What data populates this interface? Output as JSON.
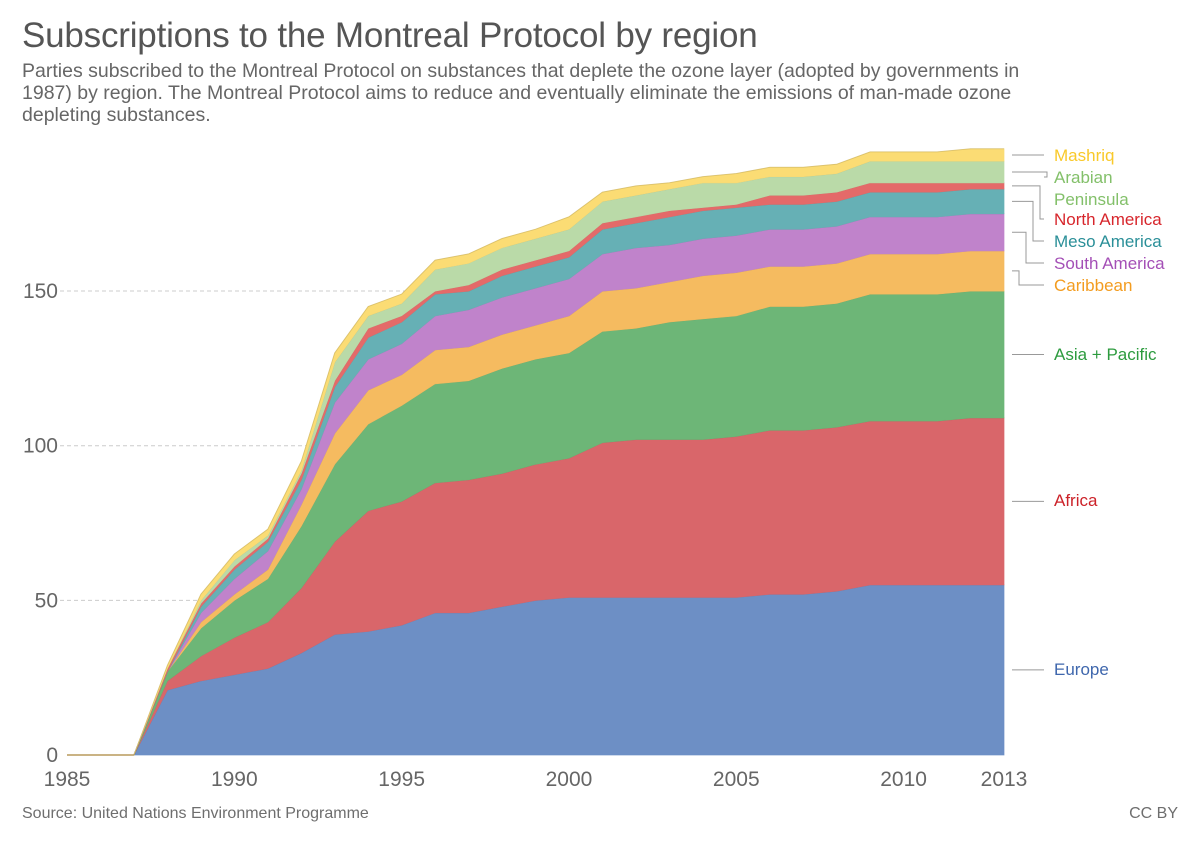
{
  "header": {
    "title": "Subscriptions to the Montreal Protocol by region",
    "subtitle": "Parties subscribed to the Montreal Protocol on substances that deplete the ozone layer (adopted by governments in 1987) by region. The Montreal Protocol aims to reduce and eventually eliminate the emissions of man-made ozone depleting substances."
  },
  "footer": {
    "source": "Source: United Nations Environment Programme",
    "license": "CC BY"
  },
  "chart_data": {
    "type": "area",
    "stacked": true,
    "title": "Subscriptions to the Montreal Protocol by region",
    "xlabel": "",
    "ylabel": "",
    "x": [
      1985,
      1986,
      1987,
      1988,
      1989,
      1990,
      1991,
      1992,
      1993,
      1994,
      1995,
      1996,
      1997,
      1998,
      1999,
      2000,
      2001,
      2002,
      2003,
      2004,
      2005,
      2006,
      2007,
      2008,
      2009,
      2010,
      2011,
      2012,
      2013
    ],
    "xlim": [
      1985,
      2013
    ],
    "ylim": [
      0,
      196
    ],
    "x_ticks": [
      "1985",
      "1990",
      "1995",
      "2000",
      "2005",
      "2010",
      "2013"
    ],
    "x_tick_values": [
      1985,
      1990,
      1995,
      2000,
      2005,
      2010,
      2013
    ],
    "y_ticks": [
      "0",
      "50",
      "100",
      "150"
    ],
    "y_tick_values": [
      0,
      50,
      100,
      150
    ],
    "grid": "horizontal dashed",
    "legend": "right, end-of-series labels",
    "series": [
      {
        "name": "Europe",
        "color": "#6d8fc5",
        "label_color": "#3f67ad",
        "values": [
          0,
          0,
          0,
          21,
          24,
          26,
          28,
          33,
          39,
          40,
          42,
          46,
          46,
          48,
          50,
          51,
          51,
          51,
          51,
          51,
          51,
          52,
          52,
          53,
          55,
          55,
          55,
          55,
          55
        ]
      },
      {
        "name": "Africa",
        "color": "#d9666a",
        "label_color": "#cc2229",
        "values": [
          0,
          0,
          0,
          3,
          8,
          12,
          15,
          21,
          30,
          39,
          40,
          42,
          43,
          43,
          44,
          45,
          50,
          51,
          51,
          51,
          52,
          53,
          53,
          53,
          53,
          53,
          53,
          54,
          54
        ]
      },
      {
        "name": "Asia + Pacific",
        "color": "#6db677",
        "label_color": "#2c9b3e",
        "values": [
          0,
          0,
          0,
          3,
          9,
          12,
          14,
          20,
          25,
          28,
          31,
          32,
          32,
          34,
          34,
          34,
          36,
          36,
          38,
          39,
          39,
          40,
          40,
          40,
          41,
          41,
          41,
          41,
          41
        ]
      },
      {
        "name": "Caribbean",
        "color": "#f5bb60",
        "label_color": "#f39c1f",
        "values": [
          0,
          0,
          0,
          0,
          2,
          2,
          3,
          7,
          10,
          11,
          10,
          11,
          11,
          11,
          11,
          12,
          13,
          13,
          13,
          14,
          14,
          13,
          13,
          13,
          13,
          13,
          13,
          13,
          13
        ]
      },
      {
        "name": "South America",
        "color": "#c083cb",
        "label_color": "#a44fb6",
        "values": [
          0,
          0,
          0,
          0,
          3,
          5,
          6,
          5,
          10,
          10,
          10,
          11,
          12,
          12,
          12,
          12,
          12,
          13,
          12,
          12,
          12,
          12,
          12,
          12,
          12,
          12,
          12,
          12,
          12
        ]
      },
      {
        "name": "Meso America",
        "color": "#66b0b5",
        "label_color": "#2a8f98",
        "values": [
          0,
          0,
          0,
          0,
          2,
          3,
          3,
          3,
          5,
          7,
          7,
          7,
          6,
          7,
          7,
          7,
          8,
          8,
          9,
          9,
          9,
          8,
          8,
          8,
          8,
          8,
          8,
          8,
          8
        ]
      },
      {
        "name": "North America",
        "color": "#e46a69",
        "label_color": "#d7262c",
        "values": [
          0,
          0,
          0,
          1,
          1,
          1,
          1,
          2,
          2,
          3,
          2,
          1,
          2,
          2,
          2,
          2,
          2,
          2,
          2,
          1,
          1,
          3,
          3,
          3,
          3,
          3,
          3,
          2,
          2
        ]
      },
      {
        "name": "Arabian Peninsula",
        "label_lines": [
          "Arabian",
          "Peninsula"
        ],
        "color": "#badaa8",
        "label_color": "#83c06a",
        "values": [
          0,
          0,
          0,
          0,
          1,
          2,
          1,
          1,
          6,
          4,
          4,
          7,
          7,
          7,
          7,
          7,
          7,
          7,
          7,
          8,
          7,
          6,
          6,
          6,
          7,
          7,
          7,
          7,
          7
        ]
      },
      {
        "name": "Mashriq",
        "color": "#fbdc74",
        "label_color": "#f9c92a",
        "values": [
          0,
          0,
          0,
          1,
          2,
          2,
          2,
          3,
          3,
          3,
          3,
          3,
          3,
          3,
          3,
          4,
          3,
          3,
          2,
          2,
          3,
          3,
          3,
          3,
          3,
          3,
          3,
          4,
          4
        ]
      }
    ]
  }
}
